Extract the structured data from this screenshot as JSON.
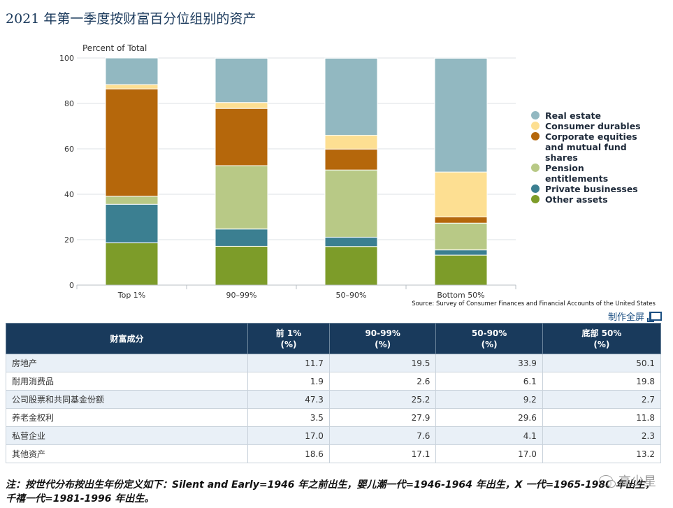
{
  "title": "2021 年第一季度按财富百分位组别的资产",
  "chart_data": {
    "type": "bar",
    "stacked": true,
    "ylabel": "Percent of Total",
    "ylim": [
      0,
      100
    ],
    "yticks": [
      "0",
      "20",
      "40",
      "60",
      "80",
      "100"
    ],
    "categories": [
      "Top 1%",
      "90–99%",
      "50–90%",
      "Bottom 50%"
    ],
    "legend_position": "right",
    "series": [
      {
        "name": "Other assets",
        "color": "#7d9c29",
        "values": [
          18.6,
          17.1,
          17.0,
          13.2
        ]
      },
      {
        "name": "Private businesses",
        "color": "#3b7f91",
        "values": [
          17.0,
          7.6,
          4.1,
          2.3
        ]
      },
      {
        "name": "Pension entitlements",
        "color": "#b8c986",
        "values": [
          3.5,
          27.9,
          29.6,
          11.8
        ]
      },
      {
        "name": "Corporate equities and mutual fund shares",
        "color": "#b5670b",
        "values": [
          47.3,
          25.2,
          9.2,
          2.7
        ]
      },
      {
        "name": "Consumer durables",
        "color": "#fddf92",
        "values": [
          1.9,
          2.6,
          6.1,
          19.8
        ]
      },
      {
        "name": "Real estate",
        "color": "#92b8c1",
        "values": [
          11.7,
          19.5,
          33.9,
          50.1
        ]
      }
    ],
    "legend_order": [
      {
        "name": "Real estate",
        "color": "#92b8c1"
      },
      {
        "name": "Consumer durables",
        "color": "#fddf92"
      },
      {
        "name": "Corporate equities and mutual fund shares",
        "color": "#b5670b"
      },
      {
        "name": "Pension entitlements",
        "color": "#b8c986"
      },
      {
        "name": "Private businesses",
        "color": "#3b7f91"
      },
      {
        "name": "Other assets",
        "color": "#7d9c29"
      }
    ]
  },
  "source": "Source: Survey of Consumer Finances and Financial Accounts of the United States",
  "fullscreen_label": "制作全屏",
  "table": {
    "headers": [
      "财富成分",
      "前 1%\n(%)",
      "90-99%\n(%)",
      "50-90%\n(%)",
      "底部 50%\n(%)"
    ],
    "rows": [
      [
        "房地产",
        "11.7",
        "19.5",
        "33.9",
        "50.1"
      ],
      [
        "耐用消费品",
        "1.9",
        "2.6",
        "6.1",
        "19.8"
      ],
      [
        "公司股票和共同基金份额",
        "47.3",
        "25.2",
        "9.2",
        "2.7"
      ],
      [
        "养老金权利",
        "3.5",
        "27.9",
        "29.6",
        "11.8"
      ],
      [
        "私营企业",
        "17.0",
        "7.6",
        "4.1",
        "2.3"
      ],
      [
        "其他资产",
        "18.6",
        "17.1",
        "17.0",
        "13.2"
      ]
    ]
  },
  "note": "注：按世代分布按出生年份定义如下：Silent and Early=1946 年之前出生，婴儿潮一代=1946-1964 年出生，X 一代=1965-1980 年出生，千禧一代=1981-1996 年出生。",
  "watermark": "高少星"
}
